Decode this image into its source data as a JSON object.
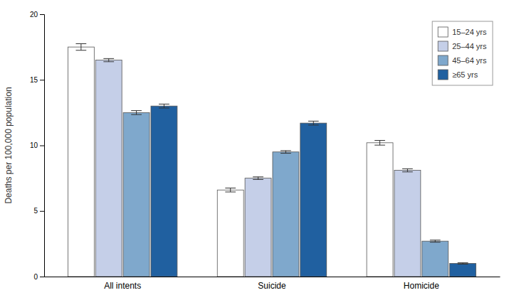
{
  "chart_data": {
    "type": "bar",
    "categories": [
      "All intents",
      "Suicide",
      "Homicide"
    ],
    "series": [
      {
        "name": "15–24 yrs",
        "color": "#ffffff",
        "values": [
          17.5,
          6.6,
          10.2
        ],
        "errors": [
          0.25,
          0.15,
          0.18
        ]
      },
      {
        "name": "25–44 yrs",
        "color": "#c5cfe8",
        "values": [
          16.5,
          7.5,
          8.1
        ],
        "errors": [
          0.12,
          0.1,
          0.12
        ]
      },
      {
        "name": "45–64 yrs",
        "color": "#7fa8cc",
        "values": [
          12.5,
          9.5,
          2.7
        ],
        "errors": [
          0.15,
          0.1,
          0.08
        ]
      },
      {
        "name": "≥65 yrs",
        "color": "#2060a0",
        "values": [
          13.0,
          11.7,
          1.0
        ],
        "errors": [
          0.15,
          0.15,
          0.05
        ]
      }
    ],
    "ylabel": "Deaths per 100,000 population",
    "ylim": [
      0,
      20
    ],
    "yticks": [
      0,
      5,
      10,
      15,
      20
    ],
    "grid": false,
    "legend": "upper right"
  }
}
